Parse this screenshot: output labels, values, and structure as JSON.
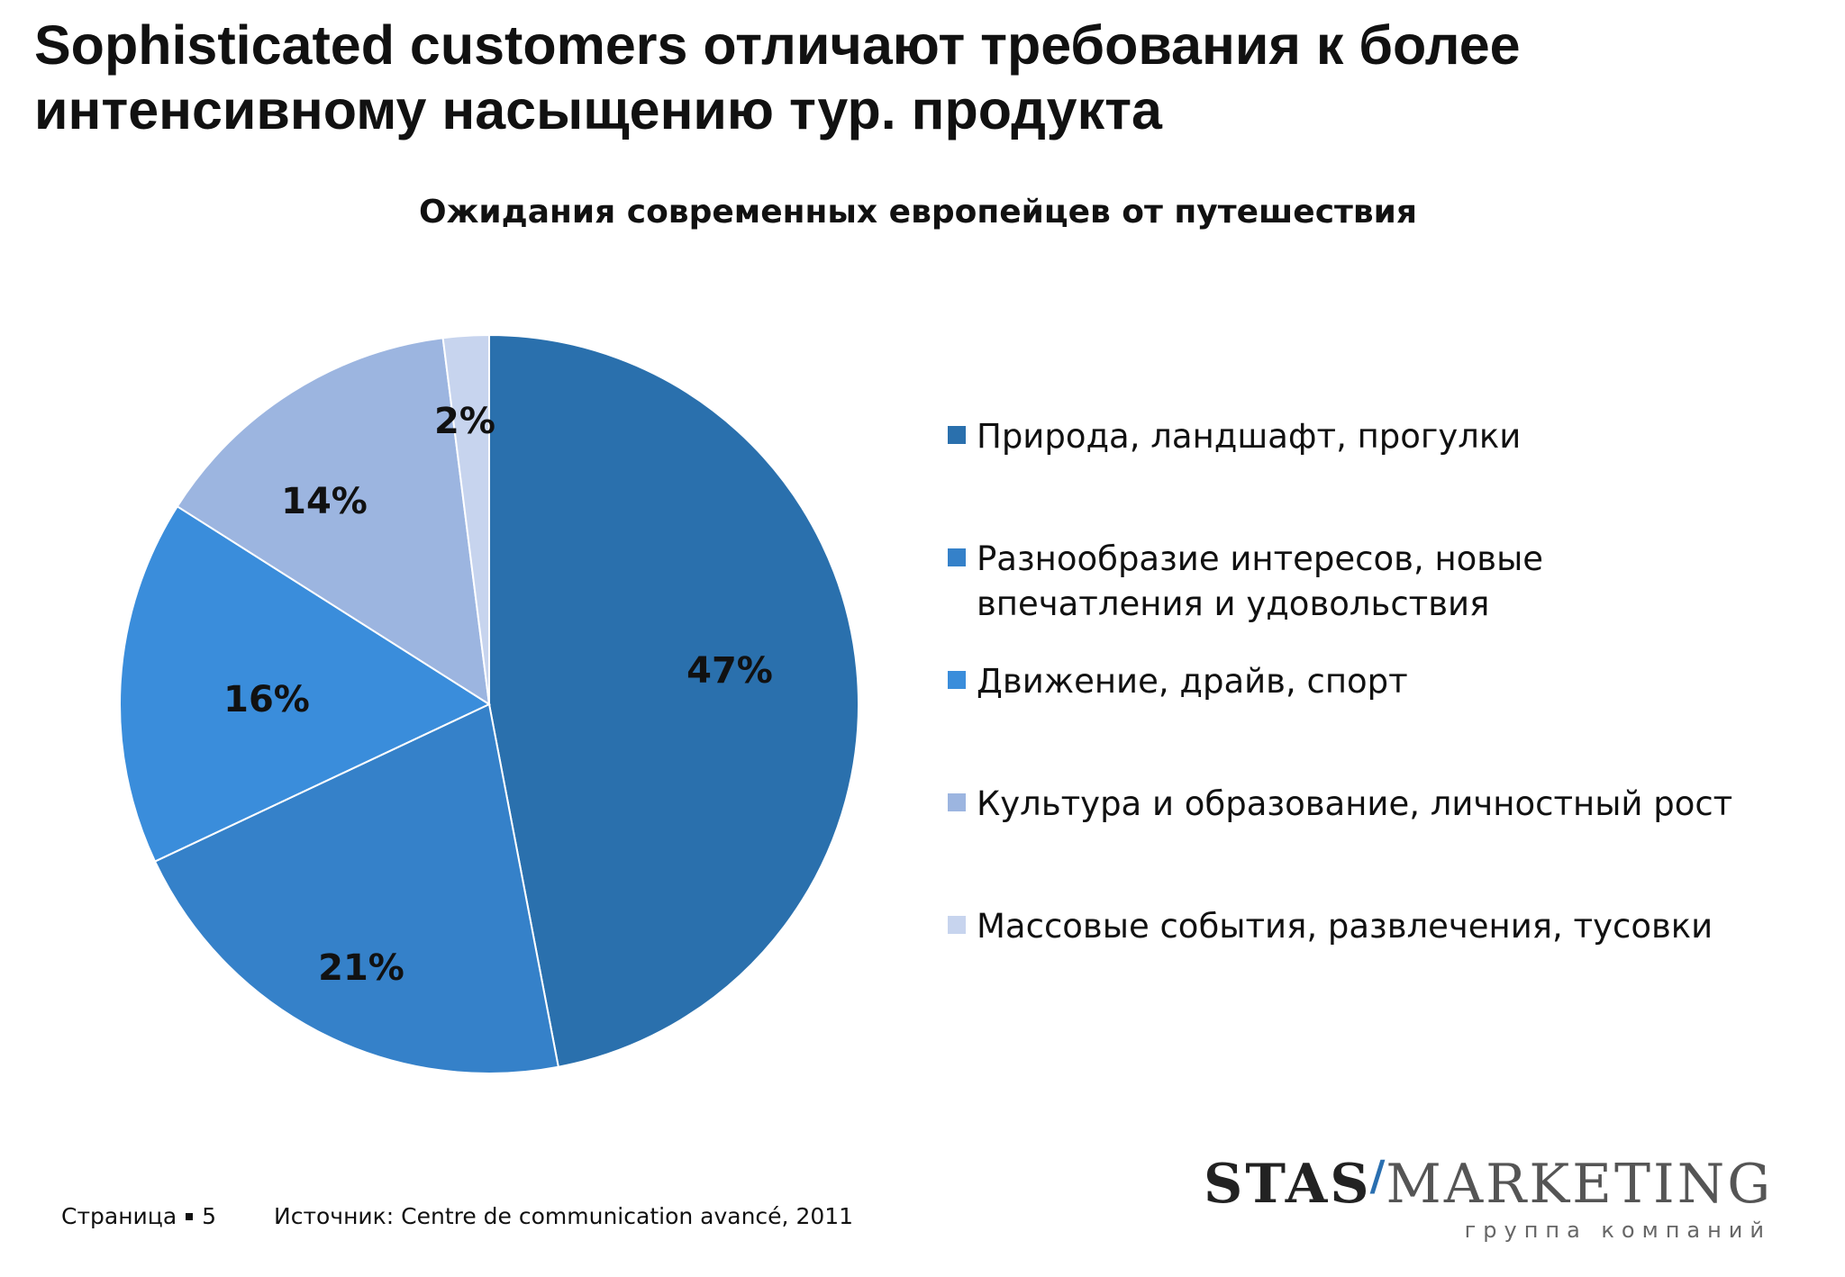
{
  "slide": {
    "title_line1": "Sophisticated customers отличают требования к более",
    "title_line2": "интенсивному насыщению тур. продукта"
  },
  "chart_data": {
    "type": "pie",
    "title": "Ожидания современных европейцев от путешествия",
    "legend_position": "right",
    "slices": [
      {
        "label": "Природа, ландшафт, прогулки",
        "value": 47,
        "value_label": "47%",
        "color": "#2a70ad"
      },
      {
        "label": "Разнообразие интересов, новые впечатления и удовольствия",
        "value": 21,
        "value_label": "21%",
        "color": "#3581c9"
      },
      {
        "label": "Движение, драйв, спорт",
        "value": 16,
        "value_label": "16%",
        "color": "#3a8ddb"
      },
      {
        "label": "Культура и образование, личностный рост",
        "value": 14,
        "value_label": "14%",
        "color": "#9cb5e0"
      },
      {
        "label": "Массовые события, развлечения, тусовки",
        "value": 2,
        "value_label": "2%",
        "color": "#c7d4ee"
      }
    ]
  },
  "footer": {
    "page_label": "Страница",
    "page_number": "5",
    "source": "Источник: Centre de communication avancé, 2011"
  },
  "logo": {
    "part1": "STAS",
    "part2": "MARKETING",
    "tagline": "группа компаний",
    "accent_color": "#2a6fb0"
  }
}
